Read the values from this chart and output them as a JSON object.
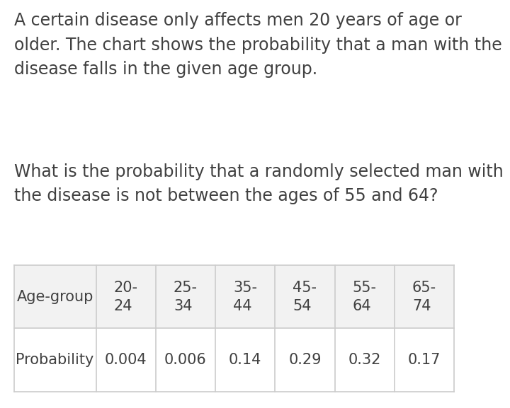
{
  "paragraph1": "A certain disease only affects men 20 years of age or older. The chart shows the probability that a man with the disease falls in the given age group.",
  "paragraph2": "What is the probability that a randomly selected man with the disease is not between the ages of 55 and 64?",
  "table": {
    "row1_label": "Age-group",
    "row2_label": "Probability",
    "col_headers": [
      "20-\n24",
      "25-\n34",
      "35-\n44",
      "45-\n54",
      "55-\n64",
      "65-\n74"
    ],
    "probabilities": [
      "0.004",
      "0.006",
      "0.14",
      "0.29",
      "0.32",
      "0.17"
    ]
  },
  "background_color": "#ffffff",
  "text_color": "#404040",
  "table_bg_row1": "#f2f2f2",
  "table_bg_row2": "#ffffff",
  "table_border_color": "#cccccc",
  "font_size_body": 17,
  "font_size_table": 15
}
